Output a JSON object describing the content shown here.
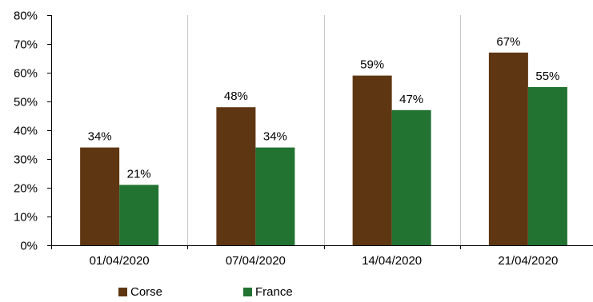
{
  "chart_data": {
    "type": "bar",
    "categories": [
      "01/04/2020",
      "07/04/2020",
      "14/04/2020",
      "21/04/2020"
    ],
    "series": [
      {
        "name": "Corse",
        "values": [
          34,
          48,
          59,
          67
        ],
        "labels": [
          "34%",
          "48%",
          "59%",
          "67%"
        ],
        "color": "#5f3612"
      },
      {
        "name": "France",
        "values": [
          21,
          34,
          47,
          55
        ],
        "labels": [
          "21%",
          "34%",
          "47%",
          "55%"
        ],
        "color": "#227331"
      }
    ],
    "ylim": [
      0,
      80
    ],
    "yticks": [
      0,
      10,
      20,
      30,
      40,
      50,
      60,
      70,
      80
    ],
    "ytick_labels": [
      "0%",
      "10%",
      "20%",
      "30%",
      "40%",
      "50%",
      "60%",
      "70%",
      "80%"
    ],
    "grid": "vertical",
    "legend": "bottom-left",
    "title": "",
    "xlabel": "",
    "ylabel": ""
  }
}
